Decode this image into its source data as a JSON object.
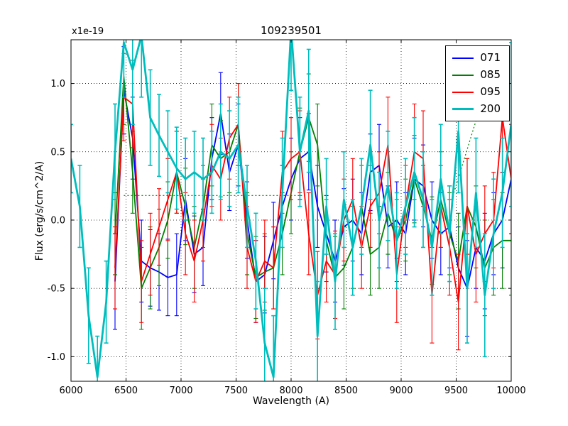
{
  "chart_data": {
    "type": "line",
    "title": "109239501",
    "xlabel": "Wavelength (A)",
    "ylabel": "Flux (erg/s/cm^2/A)",
    "y_offset_label": "x1e-19",
    "grid": true,
    "legend_position": "upper right",
    "xlim": [
      6000,
      10000
    ],
    "ylim": [
      -1.18,
      1.32
    ],
    "x_ticks": [
      6000,
      6500,
      7000,
      7500,
      8000,
      8500,
      9000,
      9500,
      10000
    ],
    "x_tick_labels": [
      "6000",
      "6500",
      "7000",
      "7500",
      "8000",
      "8500",
      "9000",
      "9500",
      "10000"
    ],
    "y_ticks": [
      -1.0,
      -0.5,
      0.0,
      0.5,
      1.0
    ],
    "y_tick_labels": [
      "-1.0",
      "-0.5",
      "0.0",
      "0.5",
      "1.0"
    ],
    "x": [
      6000,
      6080,
      6160,
      6240,
      6320,
      6400,
      6480,
      6560,
      6640,
      6720,
      6800,
      6880,
      6960,
      7040,
      7120,
      7200,
      7280,
      7360,
      7440,
      7520,
      7600,
      7680,
      7760,
      7840,
      7920,
      8000,
      8080,
      8160,
      8240,
      8320,
      8400,
      8480,
      8560,
      8640,
      8720,
      8800,
      8880,
      8960,
      9040,
      9120,
      9200,
      9280,
      9360,
      9440,
      9520,
      9600,
      9680,
      9760,
      9840,
      9920,
      10000
    ],
    "series": [
      {
        "name": "071",
        "color": "#0000ff",
        "linewidth": 1.8,
        "values": [
          null,
          null,
          null,
          null,
          null,
          -0.45,
          0.95,
          0.6,
          -0.3,
          -0.35,
          -0.38,
          -0.42,
          -0.4,
          0.15,
          -0.25,
          -0.2,
          0.45,
          0.78,
          0.35,
          0.55,
          0.0,
          -0.45,
          -0.4,
          -0.15,
          0.1,
          0.3,
          0.45,
          0.5,
          0.1,
          -0.1,
          -0.3,
          -0.05,
          0.0,
          -0.1,
          0.35,
          0.4,
          -0.05,
          0.0,
          -0.1,
          0.3,
          0.25,
          0.0,
          -0.1,
          -0.05,
          -0.35,
          -0.5,
          -0.2,
          -0.3,
          -0.1,
          0.0,
          0.3
        ],
        "errors": [
          null,
          null,
          null,
          null,
          null,
          0.35,
          0.32,
          0.3,
          0.3,
          0.28,
          0.28,
          0.28,
          0.3,
          0.3,
          0.28,
          0.28,
          0.3,
          0.3,
          0.28,
          0.3,
          0.28,
          0.3,
          0.28,
          0.28,
          0.3,
          0.3,
          0.3,
          0.28,
          0.3,
          0.28,
          0.3,
          0.28,
          0.3,
          0.3,
          0.28,
          0.3,
          0.3,
          0.28,
          0.3,
          0.3,
          0.3,
          0.28,
          0.3,
          0.3,
          0.3,
          0.35,
          0.3,
          0.35,
          0.3,
          0.35,
          0.4
        ]
      },
      {
        "name": "085",
        "color": "#008000",
        "linewidth": 1.8,
        "values": [
          null,
          null,
          null,
          null,
          null,
          -0.1,
          1.05,
          0.35,
          -0.5,
          -0.35,
          -0.2,
          0.0,
          0.35,
          0.1,
          -0.2,
          0.1,
          0.55,
          0.45,
          0.5,
          0.7,
          -0.1,
          -0.42,
          -0.38,
          -0.35,
          -0.1,
          0.2,
          0.5,
          0.75,
          0.55,
          -0.15,
          -0.42,
          -0.35,
          -0.2,
          0.1,
          -0.25,
          -0.2,
          0.05,
          -0.15,
          0.0,
          0.3,
          0.1,
          -0.15,
          0.15,
          -0.1,
          -0.3,
          0.1,
          -0.05,
          -0.35,
          -0.2,
          -0.15,
          -0.15
        ],
        "errors": [
          null,
          null,
          null,
          null,
          null,
          0.3,
          0.35,
          0.3,
          0.3,
          0.3,
          0.28,
          0.28,
          0.3,
          0.28,
          0.3,
          0.3,
          0.3,
          0.28,
          0.3,
          0.3,
          0.3,
          0.3,
          0.28,
          0.3,
          0.3,
          0.3,
          0.32,
          0.32,
          0.3,
          0.3,
          0.3,
          0.3,
          0.3,
          0.3,
          0.3,
          0.3,
          0.3,
          0.3,
          0.3,
          0.32,
          0.3,
          0.32,
          0.35,
          0.3,
          0.35,
          0.35,
          0.3,
          0.35,
          0.35,
          0.35,
          0.4
        ]
      },
      {
        "name": "095",
        "color": "#ff0000",
        "linewidth": 1.8,
        "values": [
          null,
          null,
          null,
          null,
          null,
          -0.35,
          0.9,
          0.85,
          -0.45,
          -0.25,
          -0.05,
          0.15,
          0.35,
          -0.1,
          -0.3,
          0.0,
          0.4,
          0.3,
          0.6,
          0.7,
          -0.2,
          -0.45,
          -0.3,
          -0.35,
          0.35,
          0.45,
          0.5,
          -0.1,
          -0.55,
          -0.3,
          -0.4,
          0.0,
          0.15,
          -0.2,
          0.1,
          0.2,
          0.55,
          -0.4,
          0.1,
          0.5,
          0.45,
          -0.55,
          0.1,
          -0.2,
          -0.6,
          0.1,
          -0.25,
          -0.1,
          0.0,
          0.75,
          0.3
        ],
        "errors": [
          null,
          null,
          null,
          null,
          null,
          0.3,
          0.32,
          0.32,
          0.3,
          0.3,
          0.28,
          0.3,
          0.3,
          0.3,
          0.3,
          0.3,
          0.3,
          0.3,
          0.3,
          0.3,
          0.3,
          0.3,
          0.3,
          0.3,
          0.3,
          0.3,
          0.3,
          0.3,
          0.32,
          0.3,
          0.32,
          0.3,
          0.3,
          0.3,
          0.3,
          0.3,
          0.35,
          0.35,
          0.3,
          0.35,
          0.35,
          0.35,
          0.3,
          0.35,
          0.35,
          0.35,
          0.35,
          0.35,
          0.35,
          0.4,
          0.4
        ]
      },
      {
        "name": "200",
        "color": "#00bdbd",
        "linewidth": 2.8,
        "values": [
          0.45,
          0.1,
          -0.7,
          -1.15,
          -0.6,
          0.5,
          1.3,
          1.1,
          1.35,
          0.75,
          0.62,
          0.5,
          0.38,
          0.3,
          0.35,
          0.3,
          0.35,
          0.5,
          0.45,
          0.55,
          0.1,
          -0.3,
          -0.9,
          -1.15,
          0.2,
          1.4,
          0.5,
          0.8,
          -0.85,
          0.1,
          -0.45,
          0.15,
          -0.2,
          0.1,
          0.55,
          0.0,
          0.25,
          -0.15,
          0.1,
          0.35,
          0.15,
          -0.2,
          0.3,
          -0.1,
          0.65,
          -0.5,
          0.2,
          -0.55,
          -0.1,
          0.2,
          0.7
        ],
        "errors": [
          0.25,
          0.3,
          0.35,
          0.3,
          0.3,
          0.35,
          0.4,
          0.4,
          0.45,
          0.35,
          0.3,
          0.3,
          0.3,
          0.3,
          0.3,
          0.3,
          0.3,
          0.35,
          0.35,
          0.35,
          0.3,
          0.35,
          0.4,
          0.45,
          0.4,
          0.45,
          0.4,
          0.45,
          0.4,
          0.35,
          0.35,
          0.35,
          0.35,
          0.35,
          0.4,
          0.35,
          0.4,
          0.35,
          0.35,
          0.4,
          0.35,
          0.35,
          0.4,
          0.35,
          0.45,
          0.4,
          0.4,
          0.45,
          0.4,
          0.4,
          0.6
        ]
      }
    ],
    "dotted_segments": [
      {
        "color": "#008000",
        "points": [
          [
            6480,
            0.18
          ],
          [
            8060,
            0.18
          ]
        ]
      },
      {
        "color": "#008000",
        "points": [
          [
            9460,
            0.15
          ],
          [
            9700,
            0.78
          ]
        ]
      }
    ]
  }
}
